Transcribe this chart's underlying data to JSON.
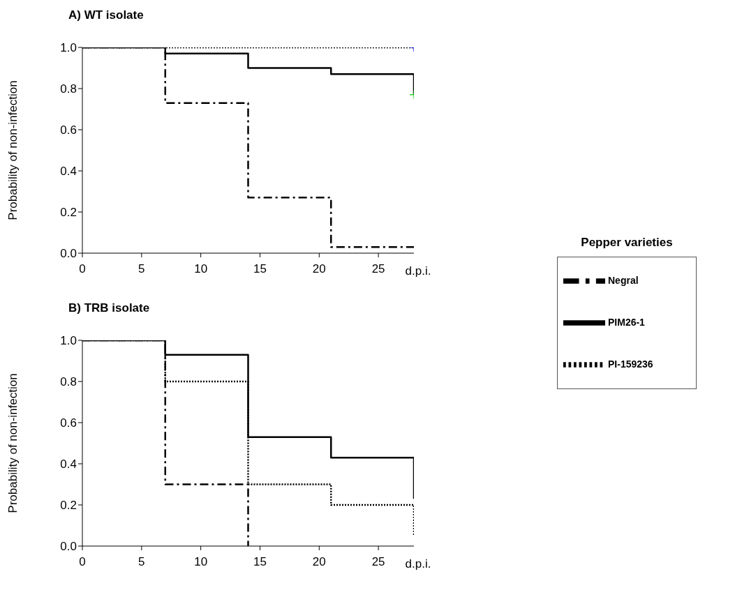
{
  "chart_data": [
    {
      "type": "step",
      "title": "A) WT isolate",
      "xlabel": "d.p.i.",
      "ylabel": "Probability of non-infection",
      "legend_title": "Pepper varieties",
      "legend": "right",
      "grid": false,
      "marker": "none",
      "xlim": [
        0,
        28
      ],
      "xticks": [
        0,
        5,
        10,
        15,
        20,
        25
      ],
      "ylim": [
        0,
        1
      ],
      "yticks": [
        {
          "value": 0,
          "label": "0.0"
        },
        {
          "value": 0.2,
          "label": "0.2"
        },
        {
          "value": 0.4,
          "label": "0.4"
        },
        {
          "value": 0.6,
          "label": "0.6"
        },
        {
          "value": 0.8,
          "label": "0.8"
        },
        {
          "value": 1,
          "label": "1.0"
        }
      ],
      "series": [
        {
          "name": "Negral",
          "color": "#000000",
          "line_style": "dashed",
          "x": [
            0,
            7,
            14,
            21,
            28
          ],
          "values": [
            1,
            0.73,
            0.27,
            0.03,
            0.03
          ]
        },
        {
          "name": "PIM26-1",
          "color": "#000000",
          "line_style": "solid",
          "x": [
            0,
            7,
            14,
            21,
            28,
            28
          ],
          "values": [
            1,
            0.97,
            0.9,
            0.87,
            0.87,
            0.77
          ]
        },
        {
          "name": "PI-159236",
          "color": "#000000",
          "line_style": "dotted",
          "x": [
            0,
            28
          ],
          "values": [
            1,
            1
          ]
        },
        {
          "type": "scatter",
          "marker": "cross",
          "color": "#0000ff",
          "x": [
            28
          ],
          "values": [
            1
          ]
        },
        {
          "type": "scatter",
          "marker": "cross",
          "color": "#00cc00",
          "x": [
            28
          ],
          "values": [
            0.77
          ]
        }
      ]
    },
    {
      "type": "step",
      "title": "B) TRB isolate",
      "xlabel": "d.p.i.",
      "ylabel": "Probability of non-infection",
      "grid": false,
      "marker": "none",
      "xlim": [
        0,
        28
      ],
      "xticks": [
        0,
        5,
        10,
        15,
        20,
        25
      ],
      "ylim": [
        0,
        1
      ],
      "yticks": [
        {
          "value": 0,
          "label": "0.0"
        },
        {
          "value": 0.2,
          "label": "0.2"
        },
        {
          "value": 0.4,
          "label": "0.4"
        },
        {
          "value": 0.6,
          "label": "0.6"
        },
        {
          "value": 0.8,
          "label": "0.8"
        },
        {
          "value": 1,
          "label": "1.0"
        }
      ],
      "series": [
        {
          "color": "#000000",
          "line_style": "dashed",
          "x": [
            0,
            7,
            14,
            14
          ],
          "values": [
            1,
            0.3,
            0.3,
            0
          ]
        },
        {
          "color": "#000000",
          "line_style": "solid",
          "x": [
            0,
            7,
            14,
            21,
            28,
            28
          ],
          "values": [
            1,
            0.93,
            0.53,
            0.43,
            0.43,
            0.23
          ]
        },
        {
          "color": "#000000",
          "line_style": "dotted",
          "x": [
            0,
            7,
            14,
            21,
            28,
            28
          ],
          "values": [
            1,
            0.8,
            0.3,
            0.2,
            0.2,
            0.05
          ]
        }
      ]
    }
  ]
}
